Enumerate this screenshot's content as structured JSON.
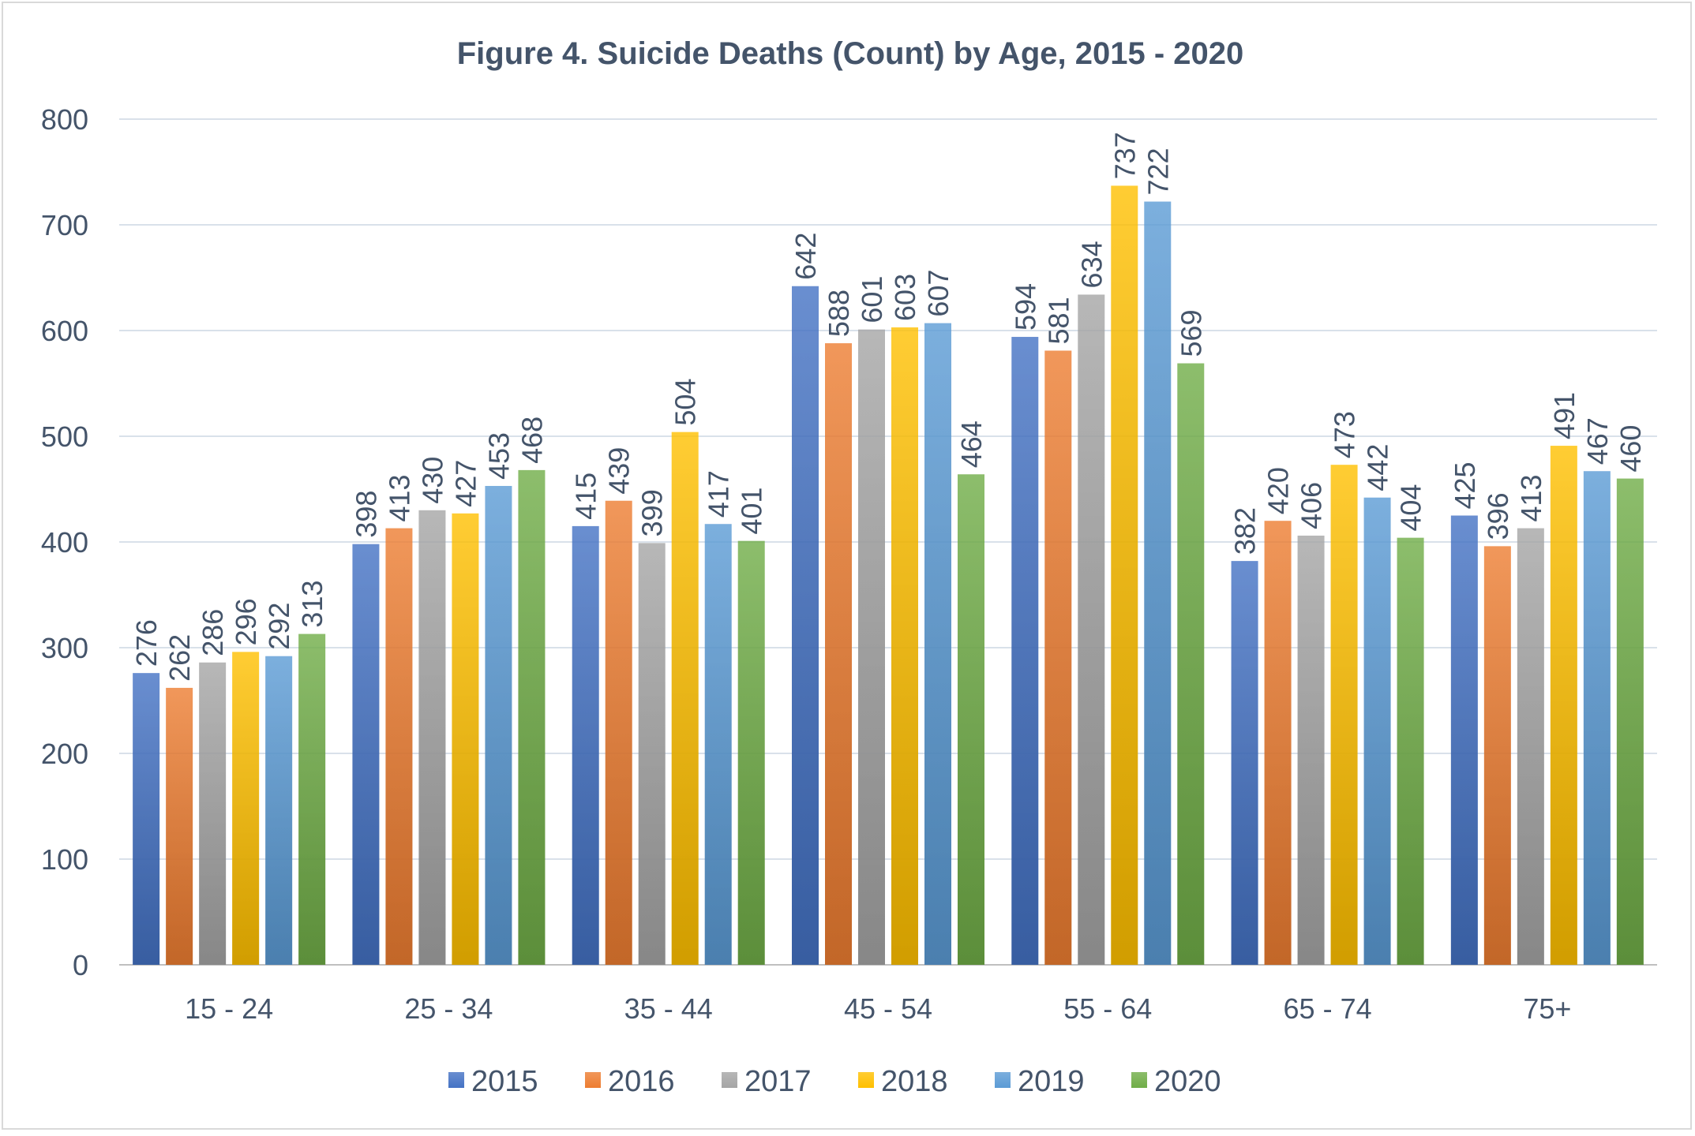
{
  "chart_data": {
    "type": "bar",
    "title": "Figure 4. Suicide Deaths (Count) by Age, 2015 - 2020",
    "xlabel": "",
    "ylabel": "",
    "ylim": [
      0,
      800
    ],
    "yticks": [
      0,
      100,
      200,
      300,
      400,
      500,
      600,
      700,
      800
    ],
    "grid": true,
    "legend_position": "bottom",
    "categories": [
      "15 - 24",
      "25 - 34",
      "35 - 44",
      "45 - 54",
      "55 - 64",
      "65 - 74",
      "75+"
    ],
    "series": [
      {
        "name": "2015",
        "color": "#4472c4",
        "values": [
          276,
          398,
          415,
          642,
          594,
          382,
          425
        ]
      },
      {
        "name": "2016",
        "color": "#ed7d31",
        "values": [
          262,
          413,
          439,
          588,
          581,
          420,
          396
        ]
      },
      {
        "name": "2017",
        "color": "#a5a5a5",
        "values": [
          286,
          430,
          399,
          601,
          634,
          406,
          413
        ]
      },
      {
        "name": "2018",
        "color": "#ffc000",
        "values": [
          296,
          427,
          504,
          603,
          737,
          473,
          491
        ]
      },
      {
        "name": "2019",
        "color": "#5b9bd5",
        "values": [
          292,
          453,
          417,
          607,
          722,
          442,
          467
        ]
      },
      {
        "name": "2020",
        "color": "#70ad47",
        "values": [
          313,
          468,
          401,
          464,
          569,
          404,
          460
        ]
      }
    ],
    "colors": {
      "text": "#44546a",
      "grid": "#d9e1ea"
    }
  }
}
